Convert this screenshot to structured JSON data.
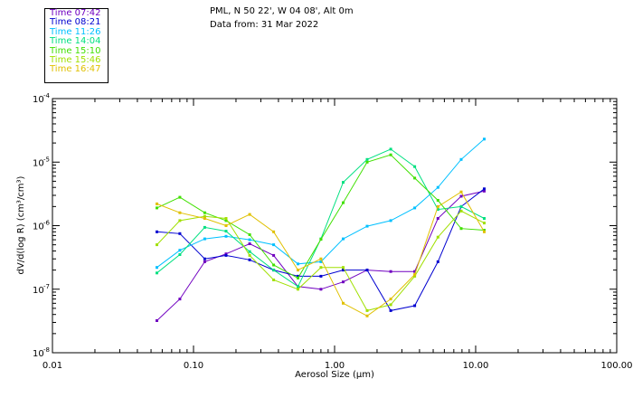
{
  "header": {
    "location": "PML, N 50 22', W 04 08', Alt 0m",
    "date_line": "Data from: 31 Mar 2022"
  },
  "chart_data": {
    "type": "line",
    "xscale": "log",
    "yscale": "log",
    "xlim": [
      0.01,
      100
    ],
    "ylim": [
      1e-08,
      0.0001
    ],
    "xlabel": "Aerosol Size (µm)",
    "ylabel": "dV/d(log R) (cm³/cm³)",
    "x_ticks": [
      {
        "value": 0.01,
        "label": "0.01"
      },
      {
        "value": 0.1,
        "label": "0.10"
      },
      {
        "value": 1,
        "label": "1.00"
      },
      {
        "value": 10,
        "label": "10.00"
      },
      {
        "value": 100,
        "label": "100.00"
      }
    ],
    "y_ticks": [
      {
        "value": 1e-08,
        "base": "10",
        "exp": "-8"
      },
      {
        "value": 1e-07,
        "base": "10",
        "exp": "-7"
      },
      {
        "value": 1e-06,
        "base": "10",
        "exp": "-6"
      },
      {
        "value": 1e-05,
        "base": "10",
        "exp": "-5"
      },
      {
        "value": 0.0001,
        "base": "10",
        "exp": "-4"
      }
    ],
    "x": [
      0.055,
      0.08,
      0.12,
      0.17,
      0.25,
      0.37,
      0.55,
      0.8,
      1.15,
      1.7,
      2.5,
      3.7,
      5.4,
      7.9,
      11.5
    ],
    "legend": "top-left",
    "grid": false,
    "series": [
      {
        "name": "Time 07:42",
        "color": "#7000c0",
        "values": [
          3.2e-08,
          7e-08,
          2.7e-07,
          3.6e-07,
          5.2e-07,
          3.4e-07,
          1.1e-07,
          1e-07,
          1.3e-07,
          2e-07,
          1.9e-07,
          1.9e-07,
          1.3e-06,
          2.9e-06,
          3.5e-06
        ]
      },
      {
        "name": "Time 08:21",
        "color": "#0000d0",
        "values": [
          8e-07,
          7.5e-07,
          3e-07,
          3.4e-07,
          2.9e-07,
          2e-07,
          1.6e-07,
          1.6e-07,
          2e-07,
          2e-07,
          4.6e-08,
          5.5e-08,
          2.7e-07,
          2e-06,
          3.8e-06
        ]
      },
      {
        "name": "Time 11:26",
        "color": "#00c0ff",
        "values": [
          2.2e-07,
          4.1e-07,
          6.2e-07,
          6.8e-07,
          6e-07,
          5e-07,
          2.5e-07,
          2.7e-07,
          6.2e-07,
          9.8e-07,
          1.2e-06,
          1.9e-06,
          4e-06,
          1.1e-05,
          2.3e-05
        ]
      },
      {
        "name": "Time 14:04",
        "color": "#00e080",
        "values": [
          1.8e-07,
          3.5e-07,
          9.4e-07,
          8.2e-07,
          3.9e-07,
          2e-07,
          1.1e-07,
          6.2e-07,
          4.8e-06,
          1.1e-05,
          1.6e-05,
          8.5e-06,
          1.8e-06,
          2e-06,
          1.3e-06
        ]
      },
      {
        "name": "Time 15:10",
        "color": "#40e000",
        "values": [
          1.9e-06,
          2.8e-06,
          1.6e-06,
          1.2e-06,
          7.2e-07,
          2.4e-07,
          1.5e-07,
          6.1e-07,
          2.3e-06,
          1e-05,
          1.3e-05,
          5.6e-06,
          2.5e-06,
          9e-07,
          8.5e-07
        ]
      },
      {
        "name": "Time 15:46",
        "color": "#a0e000",
        "values": [
          5e-07,
          1.2e-06,
          1.4e-06,
          1.3e-06,
          3.4e-07,
          1.4e-07,
          1e-07,
          2.2e-07,
          2.2e-07,
          4.6e-08,
          5.7e-08,
          1.6e-07,
          6.6e-07,
          1.7e-06,
          1.1e-06
        ]
      },
      {
        "name": "Time 16:47",
        "color": "#e0c000",
        "values": [
          2.2e-06,
          1.6e-06,
          1.3e-06,
          1e-06,
          1.5e-06,
          8e-07,
          2e-07,
          3e-07,
          6e-08,
          3.8e-08,
          7e-08,
          1.7e-07,
          2e-06,
          3.4e-06,
          8e-07
        ]
      }
    ]
  }
}
